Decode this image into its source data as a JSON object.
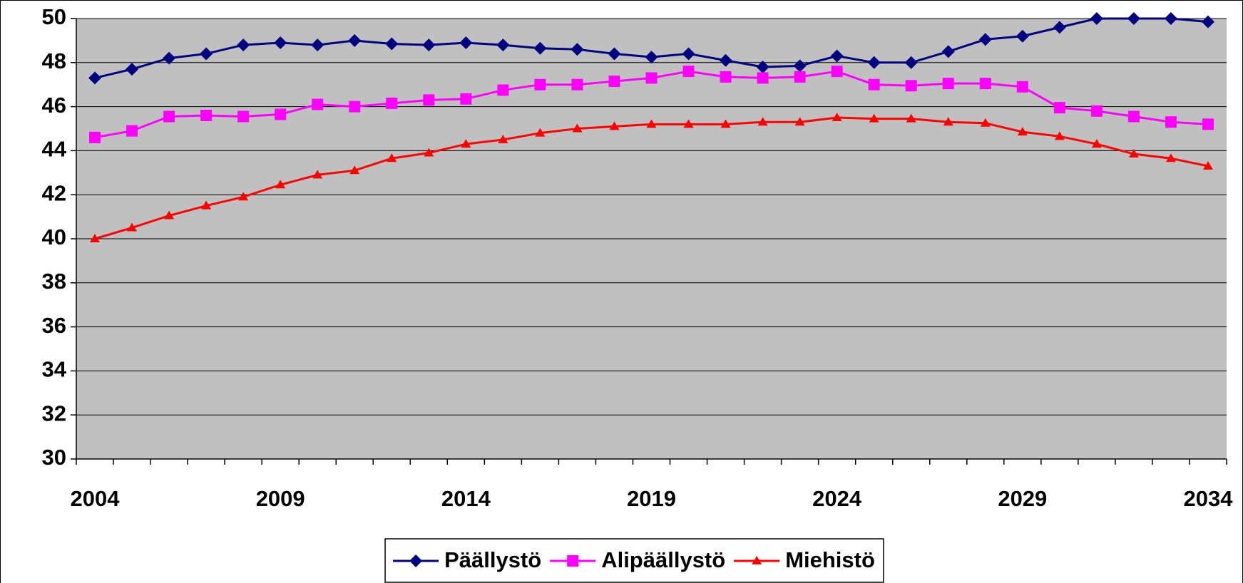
{
  "chart_data": {
    "type": "line",
    "categories": [
      "2004",
      null,
      null,
      null,
      null,
      "2009",
      null,
      null,
      null,
      null,
      "2014",
      null,
      null,
      null,
      null,
      "2019",
      null,
      null,
      null,
      null,
      "2024",
      null,
      null,
      null,
      null,
      "2029",
      null,
      null,
      null,
      null,
      "2034"
    ],
    "series": [
      {
        "name": "Päällystö",
        "color": "#000080",
        "marker": "diamond",
        "values": [
          47.3,
          47.7,
          48.2,
          48.4,
          48.8,
          48.9,
          48.8,
          49.0,
          48.85,
          48.8,
          48.9,
          48.8,
          48.65,
          48.6,
          48.4,
          48.25,
          48.4,
          48.1,
          47.8,
          47.85,
          48.3,
          48.0,
          48.0,
          48.5,
          49.05,
          49.2,
          49.6,
          50.0,
          50.0,
          50.0,
          49.85
        ]
      },
      {
        "name": "Alipäällystö",
        "color": "#ff00ff",
        "marker": "square",
        "values": [
          44.6,
          44.9,
          45.55,
          45.6,
          45.55,
          45.65,
          46.1,
          46.0,
          46.15,
          46.3,
          46.35,
          46.75,
          47.0,
          47.0,
          47.15,
          47.3,
          47.6,
          47.35,
          47.3,
          47.35,
          47.6,
          47.0,
          46.95,
          47.05,
          47.05,
          46.9,
          45.95,
          45.8,
          45.55,
          45.3,
          45.2
        ]
      },
      {
        "name": "Miehistö",
        "color": "#ff0000",
        "marker": "triangle",
        "values": [
          40.0,
          40.5,
          41.05,
          41.5,
          41.9,
          42.45,
          42.9,
          43.1,
          43.65,
          43.9,
          44.3,
          44.5,
          44.8,
          45.0,
          45.1,
          45.2,
          45.2,
          45.2,
          45.3,
          45.3,
          45.5,
          45.45,
          45.45,
          45.3,
          45.25,
          44.85,
          44.65,
          44.3,
          43.85,
          43.65,
          43.3
        ]
      }
    ],
    "ylim": [
      30,
      50
    ],
    "yticks": [
      30,
      32,
      34,
      36,
      38,
      40,
      42,
      44,
      46,
      48,
      50
    ],
    "grid": true,
    "legend": "bottom",
    "plot_background": "#c0c0c0"
  }
}
